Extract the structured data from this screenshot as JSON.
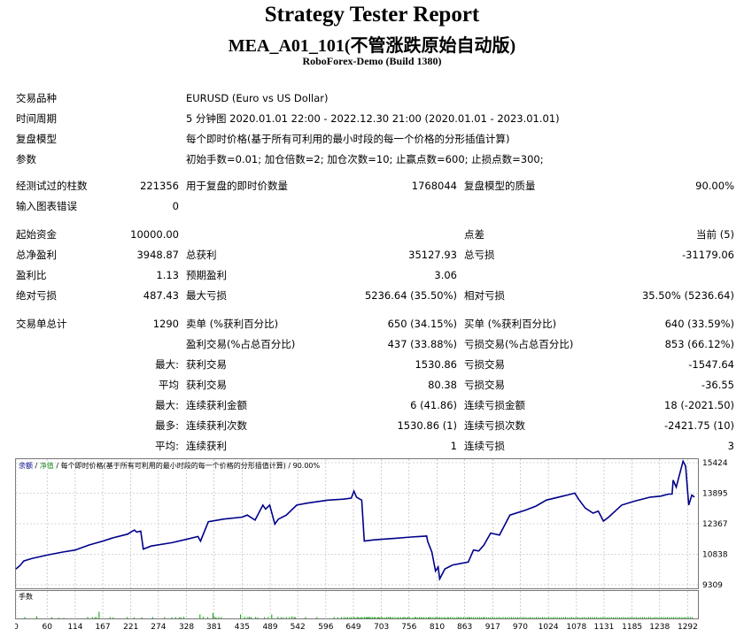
{
  "header": {
    "title": "Strategy Tester Report",
    "subtitle": "MEA_A01_101(不管涨跌原始自动版)",
    "server": "RoboForex-Demo (Build 1380)"
  },
  "info": {
    "symbol_label": "交易品种",
    "symbol": "EURUSD (Euro vs US Dollar)",
    "period_label": "时间周期",
    "period": "5 分钟图 2020.01.01 22:00 - 2022.12.30 21:00 (2020.01.01 - 2023.01.01)",
    "model_label": "复盘模型",
    "model": "每个即时价格(基于所有可利用的最小时段的每一个价格的分形插值计算)",
    "params_label": "参数",
    "params": "初始手数=0.01; 加仓倍数=2; 加仓次数=10; 止赢点数=600; 止损点数=300;"
  },
  "stats": {
    "bars_label": "经测试过的柱数",
    "bars": "221356",
    "ticks_label": "用于复盘的即时价数量",
    "ticks": "1768044",
    "quality_label": "复盘模型的质量",
    "quality": "90.00%",
    "errors_label": "输入图表错误",
    "errors": "0",
    "deposit_label": "起始资金",
    "deposit": "10000.00",
    "spread_label": "点差",
    "spread": "当前 (5)",
    "net_label": "总净盈利",
    "net": "3948.87",
    "gross_profit_label": "总获利",
    "gross_profit": "35127.93",
    "gross_loss_label": "总亏损",
    "gross_loss": "-31179.06",
    "pf_label": "盈利比",
    "pf": "1.13",
    "payoff_label": "预期盈利",
    "payoff": "3.06",
    "abs_dd_label": "绝对亏损",
    "abs_dd": "487.43",
    "max_dd_label": "最大亏损",
    "max_dd": "5236.64 (35.50%)",
    "rel_dd_label": "相对亏损",
    "rel_dd": "35.50% (5236.64)",
    "trades_label": "交易单总计",
    "trades": "1290",
    "short_label": "卖单 (%获利百分比)",
    "short": "650 (34.15%)",
    "long_label": "买单 (%获利百分比)",
    "long": "640 (33.59%)",
    "profit_trades_label": "盈利交易(%占总百分比)",
    "profit_trades": "437 (33.88%)",
    "loss_trades_label": "亏损交易(%占总百分比)",
    "loss_trades": "853 (66.12%)",
    "r1_prefix": "最大:",
    "r1_a_label": "获利交易",
    "r1_a": "1530.86",
    "r1_b_label": "亏损交易",
    "r1_b": "-1547.64",
    "r2_prefix": "平均",
    "r2_a_label": "获利交易",
    "r2_a": "80.38",
    "r2_b_label": "亏损交易",
    "r2_b": "-36.55",
    "r3_prefix": "最大:",
    "r3_a_label": "连续获利金额",
    "r3_a": "6 (41.86)",
    "r3_b_label": "连续亏损金额",
    "r3_b": "18 (-2021.50)",
    "r4_prefix": "最多:",
    "r4_a_label": "连续获利次数",
    "r4_a": "1530.86 (1)",
    "r4_b_label": "连续亏损次数",
    "r4_b": "-2421.75 (10)",
    "r5_prefix": "平均:",
    "r5_a_label": "连续获利",
    "r5_a": "1",
    "r5_b_label": "连续亏损",
    "r5_b": "3"
  },
  "chart_data": {
    "type": "line",
    "legend_text": "余额 / 净值 / 每个即时价格(基于所有可利用的最小时段的每一个价格的分形插值计算) / 90.00%",
    "legend_parts": [
      "余额",
      "/",
      "净值",
      "/",
      "每个即时价格(基于所有可利用的最小时段的每一个价格的分形插值计算) / 90.00%"
    ],
    "colors": {
      "balance": "#00008b",
      "legend_balance": "#00008b",
      "legend_equity": "#228b22",
      "volume": "#00a000",
      "grid": "#b0b0b0"
    },
    "y_ticks": [
      15424,
      13895,
      12367,
      10838,
      9309
    ],
    "ylim": [
      9309,
      15424
    ],
    "x_ticks": [
      0,
      60,
      114,
      167,
      221,
      274,
      328,
      381,
      435,
      489,
      542,
      596,
      649,
      703,
      756,
      810,
      863,
      917,
      970,
      1024,
      1078,
      1131,
      1185,
      1238,
      1292
    ],
    "xlim": [
      0,
      1310
    ],
    "balance": [
      [
        0,
        10100
      ],
      [
        8,
        10280
      ],
      [
        15,
        10500
      ],
      [
        30,
        10620
      ],
      [
        60,
        10800
      ],
      [
        90,
        10950
      ],
      [
        114,
        11050
      ],
      [
        140,
        11300
      ],
      [
        167,
        11500
      ],
      [
        185,
        11650
      ],
      [
        215,
        11850
      ],
      [
        221,
        11950
      ],
      [
        228,
        12050
      ],
      [
        232,
        11950
      ],
      [
        240,
        12000
      ],
      [
        245,
        11100
      ],
      [
        260,
        11250
      ],
      [
        300,
        11420
      ],
      [
        330,
        11600
      ],
      [
        350,
        11730
      ],
      [
        355,
        11500
      ],
      [
        370,
        12470
      ],
      [
        400,
        12600
      ],
      [
        435,
        12700
      ],
      [
        445,
        12800
      ],
      [
        460,
        12550
      ],
      [
        475,
        13300
      ],
      [
        480,
        13100
      ],
      [
        488,
        13300
      ],
      [
        498,
        12350
      ],
      [
        505,
        12600
      ],
      [
        520,
        12800
      ],
      [
        540,
        13300
      ],
      [
        560,
        13400
      ],
      [
        600,
        13550
      ],
      [
        630,
        13600
      ],
      [
        645,
        13650
      ],
      [
        650,
        14000
      ],
      [
        655,
        13700
      ],
      [
        665,
        13550
      ],
      [
        670,
        11500
      ],
      [
        685,
        11550
      ],
      [
        700,
        11580
      ],
      [
        730,
        11640
      ],
      [
        760,
        11700
      ],
      [
        790,
        11750
      ],
      [
        792,
        11480
      ],
      [
        800,
        10950
      ],
      [
        807,
        10000
      ],
      [
        812,
        10200
      ],
      [
        815,
        9600
      ],
      [
        825,
        10100
      ],
      [
        840,
        10300
      ],
      [
        870,
        10450
      ],
      [
        880,
        11050
      ],
      [
        890,
        11000
      ],
      [
        900,
        11300
      ],
      [
        913,
        11900
      ],
      [
        930,
        11800
      ],
      [
        950,
        12800
      ],
      [
        980,
        13050
      ],
      [
        1000,
        13250
      ],
      [
        1020,
        13550
      ],
      [
        1060,
        13800
      ],
      [
        1075,
        13900
      ],
      [
        1082,
        13600
      ],
      [
        1095,
        13150
      ],
      [
        1110,
        12900
      ],
      [
        1120,
        13000
      ],
      [
        1130,
        12500
      ],
      [
        1140,
        12700
      ],
      [
        1165,
        13300
      ],
      [
        1190,
        13500
      ],
      [
        1220,
        13700
      ],
      [
        1240,
        13750
      ],
      [
        1255,
        13850
      ],
      [
        1262,
        13850
      ],
      [
        1264,
        14550
      ],
      [
        1270,
        14200
      ],
      [
        1283,
        15500
      ],
      [
        1288,
        15250
      ],
      [
        1294,
        13300
      ],
      [
        1300,
        13800
      ],
      [
        1305,
        13700
      ]
    ],
    "volume_x": [
      17,
      40,
      69,
      83,
      92,
      138,
      147,
      152,
      155,
      160,
      181,
      187,
      214,
      227,
      242,
      263,
      286,
      300,
      307,
      314,
      317,
      323,
      354,
      360,
      369,
      379,
      382,
      385,
      390,
      395,
      432,
      440,
      446,
      449,
      452,
      461,
      465,
      478,
      485,
      492,
      504,
      510,
      514,
      520,
      526,
      531,
      535,
      537,
      557,
      579,
      612,
      619,
      626,
      631,
      635,
      638,
      642,
      645,
      649,
      652,
      656,
      658,
      661,
      664,
      666,
      670,
      673,
      674,
      676,
      678,
      680,
      683,
      686,
      689,
      691,
      695,
      697,
      699,
      702,
      705,
      709,
      713,
      716,
      719,
      721,
      725,
      729,
      733,
      736,
      740,
      744,
      746,
      749,
      753,
      754,
      757,
      763,
      767,
      769,
      772,
      776,
      779,
      782,
      785,
      789,
      793,
      795,
      798,
      802,
      806,
      809,
      812,
      815,
      819,
      823,
      826,
      830,
      832,
      836,
      840,
      844,
      848,
      851,
      854,
      857,
      861,
      865,
      868,
      871,
      873,
      876,
      880,
      884,
      888,
      892,
      895,
      899,
      901,
      905,
      909,
      913,
      917,
      921,
      925,
      929,
      933,
      937,
      941,
      945,
      949,
      953,
      957,
      961,
      965,
      969,
      973,
      977,
      981,
      985,
      989,
      993,
      997,
      1001,
      1005,
      1009,
      1013,
      1017,
      1021,
      1025,
      1029,
      1033,
      1037,
      1041,
      1045,
      1049,
      1053,
      1057,
      1061,
      1065,
      1069,
      1073,
      1077,
      1081,
      1085,
      1089,
      1093,
      1097,
      1101,
      1105,
      1109,
      1113,
      1117,
      1121,
      1125,
      1129,
      1133,
      1137,
      1141,
      1145,
      1149,
      1153,
      1157,
      1161,
      1165,
      1169,
      1173,
      1177,
      1181,
      1185,
      1189,
      1193,
      1197,
      1201,
      1205,
      1209,
      1213,
      1217,
      1221,
      1225,
      1229,
      1233,
      1237,
      1241,
      1245,
      1249,
      1253,
      1257,
      1261,
      1265,
      1269,
      1273,
      1277,
      1281,
      1285,
      1289,
      1293,
      1297,
      1301
    ],
    "volume_h": [
      0.05,
      0.08,
      0.04,
      0.03,
      0.02,
      0.05,
      0.05,
      0.05,
      0.05,
      0.25,
      0.05,
      0.04,
      0.05,
      0.04,
      0.04,
      0.05,
      0.05,
      0.04,
      0.05,
      0.04,
      0.05,
      0.06,
      0.15,
      0.06,
      0.05,
      0.2,
      0.06,
      0.04,
      0.05,
      0.05,
      0.15,
      0.06,
      0.05,
      0.06,
      0.05,
      0.05,
      0.04,
      0.05,
      0.05,
      0.15,
      0.06,
      0.05,
      0.04,
      0.05,
      0.05,
      0.08,
      0.05,
      0.05,
      0.05,
      0.05,
      0.05,
      0.04,
      0.05,
      0.05,
      0.04,
      0.05,
      0.04,
      0.05,
      0.06,
      0.04,
      0.05,
      0.05,
      0.04,
      0.04,
      0.05,
      0.06,
      0.04,
      0.04,
      0.05,
      0.05,
      0.05,
      0.05,
      0.05,
      0.04,
      0.05,
      0.04,
      0.05,
      0.04,
      0.05,
      0.05,
      0.04,
      0.05,
      0.05,
      0.05,
      0.05,
      0.05,
      0.05,
      0.04,
      0.05,
      0.05,
      0.04,
      0.05,
      0.05,
      0.04,
      0.05,
      0.05,
      0.04,
      0.05,
      0.05,
      0.04,
      0.05,
      0.05,
      0.04,
      0.05,
      0.05,
      0.04,
      0.05,
      0.05,
      0.05,
      0.05,
      0.05,
      0.04,
      0.05,
      0.05,
      0.05,
      0.04,
      0.05,
      0.04,
      0.05,
      0.05,
      0.04,
      0.05,
      0.05,
      0.04,
      0.05,
      0.05,
      0.04,
      0.05,
      0.05,
      0.04,
      0.05,
      0.05,
      0.05,
      0.05,
      0.05,
      0.04,
      0.05,
      0.05,
      0.05,
      0.04,
      0.05,
      0.05,
      0.04,
      0.05,
      0.05,
      0.04,
      0.05,
      0.05,
      0.04,
      0.05,
      0.05,
      0.05,
      0.05,
      0.05,
      0.04,
      0.05,
      0.05,
      0.05,
      0.04,
      0.05,
      0.05,
      0.04,
      0.05,
      0.05,
      0.04,
      0.05,
      0.05,
      0.04,
      0.05,
      0.05,
      0.05,
      0.05,
      0.05,
      0.04,
      0.05,
      0.05,
      0.05,
      0.04,
      0.05,
      0.05,
      0.04,
      0.05,
      0.05,
      0.04,
      0.05,
      0.05,
      0.04,
      0.05,
      0.05,
      0.05,
      0.05,
      0.05,
      0.04,
      0.05,
      0.05,
      0.05,
      0.04,
      0.05,
      0.05,
      0.04,
      0.05,
      0.05,
      0.04,
      0.05,
      0.05,
      0.04,
      0.05,
      0.05,
      0.05,
      0.05,
      0.05,
      0.04,
      0.05,
      0.05,
      0.05,
      0.04,
      0.05,
      0.05,
      0.04,
      0.05,
      0.05,
      0.04
    ],
    "volume_label": "手数"
  }
}
